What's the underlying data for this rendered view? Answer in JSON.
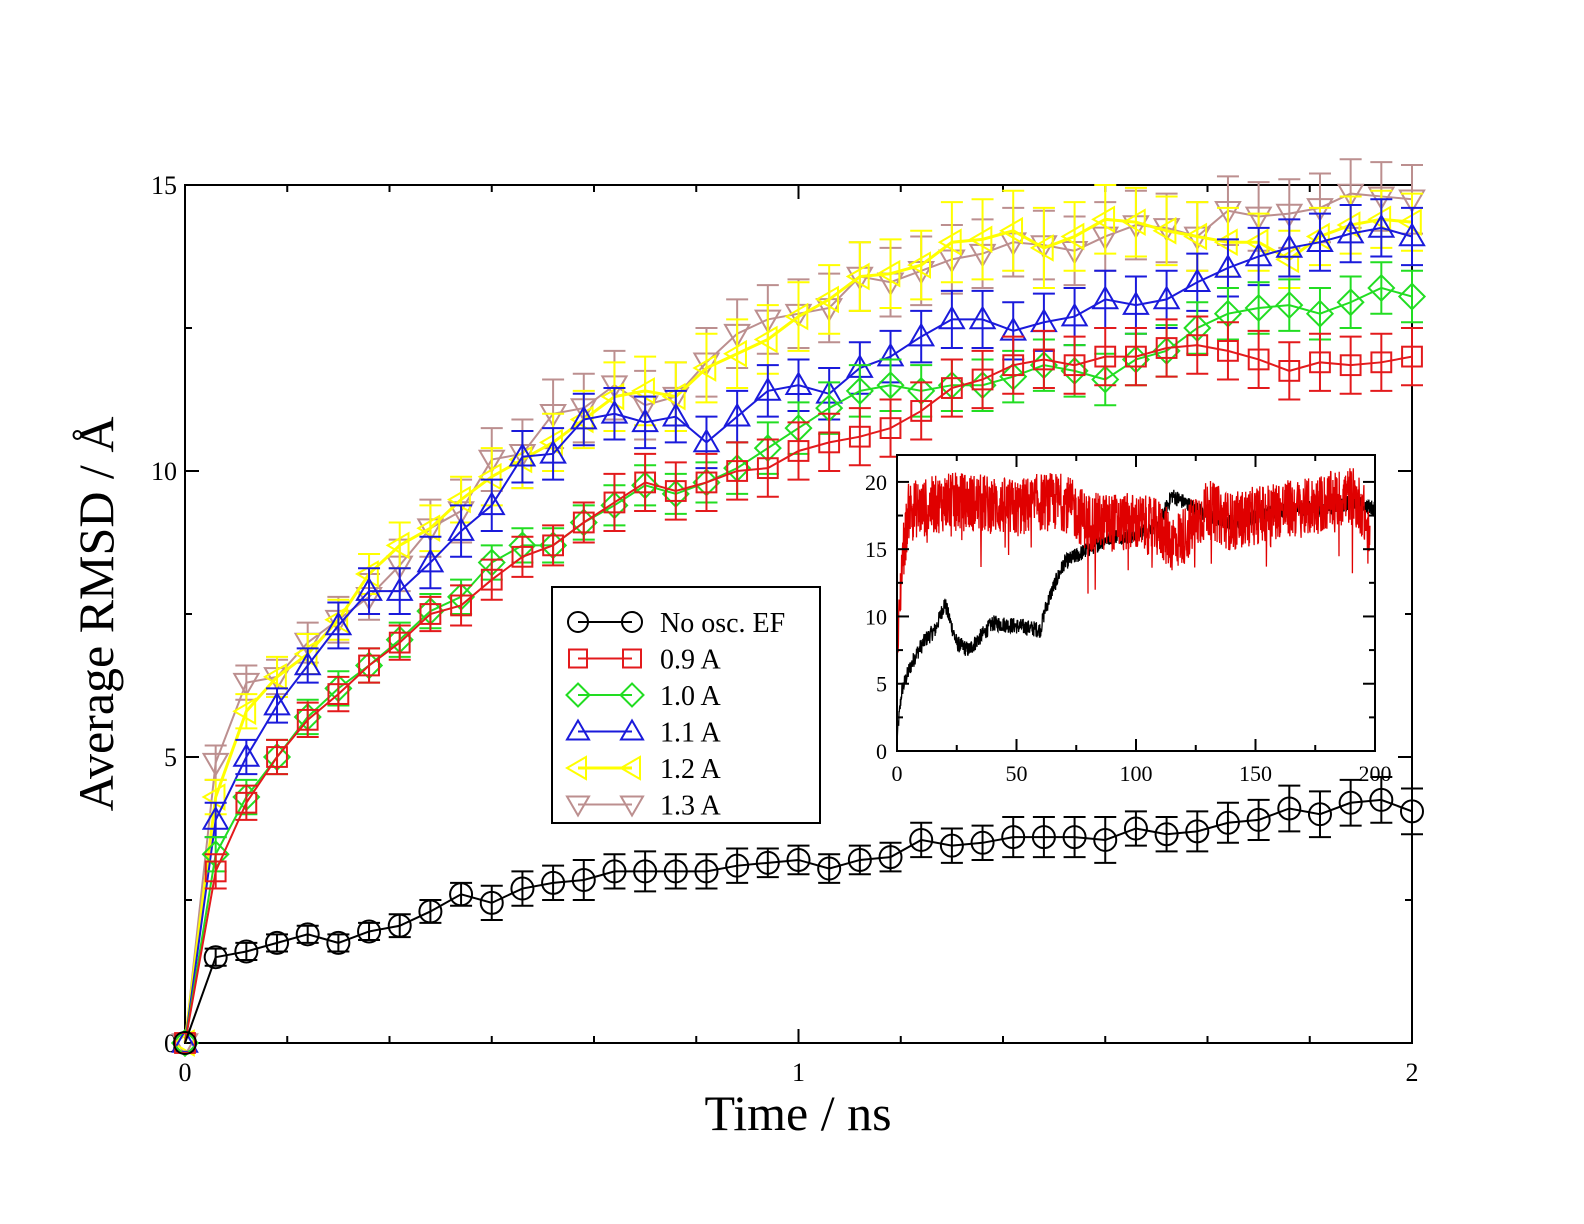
{
  "chart_data": [
    {
      "type": "line",
      "title": "",
      "xlabel": "Time / ns",
      "ylabel": "Average RMSD / Å",
      "xlim": [
        0,
        2
      ],
      "ylim": [
        0,
        15
      ],
      "x_ticks": [
        "0",
        "1",
        "2"
      ],
      "y_ticks": [
        "0",
        "5",
        "10",
        "15"
      ],
      "legend_position": "center",
      "series": [
        {
          "name": "No osc. EF",
          "color": "#000000",
          "marker": "circle",
          "x": [
            0,
            0.05,
            0.1,
            0.15,
            0.2,
            0.25,
            0.3,
            0.35,
            0.4,
            0.45,
            0.5,
            0.55,
            0.6,
            0.65,
            0.7,
            0.75,
            0.8,
            0.85,
            0.9,
            0.95,
            1.0,
            1.05,
            1.1,
            1.15,
            1.2,
            1.25,
            1.3,
            1.35,
            1.4,
            1.45,
            1.5,
            1.55,
            1.6,
            1.65,
            1.7,
            1.75,
            1.8,
            1.85,
            1.9,
            1.95,
            2.0
          ],
          "y": [
            0,
            1.5,
            1.6,
            1.75,
            1.9,
            1.75,
            1.95,
            2.05,
            2.3,
            2.6,
            2.45,
            2.7,
            2.8,
            2.85,
            3.0,
            3.0,
            3.0,
            3.0,
            3.1,
            3.15,
            3.2,
            3.05,
            3.2,
            3.25,
            3.55,
            3.45,
            3.5,
            3.6,
            3.6,
            3.6,
            3.55,
            3.75,
            3.65,
            3.7,
            3.85,
            3.9,
            4.1,
            4.0,
            4.2,
            4.25,
            4.05
          ],
          "err": [
            0,
            0.15,
            0.15,
            0.15,
            0.15,
            0.15,
            0.15,
            0.2,
            0.2,
            0.2,
            0.3,
            0.3,
            0.3,
            0.35,
            0.3,
            0.35,
            0.3,
            0.3,
            0.3,
            0.25,
            0.25,
            0.25,
            0.25,
            0.25,
            0.3,
            0.3,
            0.3,
            0.35,
            0.35,
            0.35,
            0.4,
            0.3,
            0.3,
            0.35,
            0.35,
            0.35,
            0.4,
            0.4,
            0.4,
            0.4,
            0.4
          ]
        },
        {
          "name": "0.9 A",
          "color": "#e31a1c",
          "marker": "square",
          "x": [
            0,
            0.05,
            0.1,
            0.15,
            0.2,
            0.25,
            0.3,
            0.35,
            0.4,
            0.45,
            0.5,
            0.55,
            0.6,
            0.65,
            0.7,
            0.75,
            0.8,
            0.85,
            0.9,
            0.95,
            1.0,
            1.05,
            1.1,
            1.15,
            1.2,
            1.25,
            1.3,
            1.35,
            1.4,
            1.45,
            1.5,
            1.55,
            1.6,
            1.65,
            1.7,
            1.75,
            1.8,
            1.85,
            1.9,
            1.95,
            2.0
          ],
          "y": [
            0,
            3.0,
            4.2,
            5.0,
            5.65,
            6.1,
            6.6,
            7.0,
            7.5,
            7.65,
            8.1,
            8.5,
            8.7,
            9.1,
            9.45,
            9.8,
            9.65,
            9.8,
            10.0,
            10.05,
            10.35,
            10.5,
            10.6,
            10.75,
            11.05,
            11.45,
            11.6,
            11.85,
            11.95,
            11.85,
            12.0,
            12.0,
            12.15,
            12.2,
            12.1,
            11.95,
            11.75,
            11.9,
            11.85,
            11.9,
            12.0
          ],
          "err": [
            0,
            0.3,
            0.3,
            0.3,
            0.3,
            0.3,
            0.3,
            0.3,
            0.3,
            0.35,
            0.35,
            0.35,
            0.35,
            0.35,
            0.5,
            0.5,
            0.5,
            0.5,
            0.5,
            0.5,
            0.5,
            0.5,
            0.5,
            0.5,
            0.5,
            0.5,
            0.5,
            0.5,
            0.5,
            0.5,
            0.5,
            0.5,
            0.5,
            0.5,
            0.5,
            0.5,
            0.5,
            0.5,
            0.5,
            0.5,
            0.5
          ]
        },
        {
          "name": "1.0 A",
          "color": "#22dd22",
          "marker": "diamond",
          "x": [
            0,
            0.05,
            0.1,
            0.15,
            0.2,
            0.25,
            0.3,
            0.35,
            0.4,
            0.45,
            0.5,
            0.55,
            0.6,
            0.65,
            0.7,
            0.75,
            0.8,
            0.85,
            0.9,
            0.95,
            1.0,
            1.05,
            1.1,
            1.15,
            1.2,
            1.25,
            1.3,
            1.35,
            1.4,
            1.45,
            1.5,
            1.55,
            1.6,
            1.65,
            1.7,
            1.75,
            1.8,
            1.85,
            1.9,
            1.95,
            2.0
          ],
          "y": [
            0,
            3.3,
            4.3,
            5.0,
            5.7,
            6.2,
            6.6,
            7.05,
            7.55,
            7.8,
            8.4,
            8.7,
            8.7,
            9.1,
            9.4,
            9.75,
            9.6,
            9.8,
            10.05,
            10.4,
            10.75,
            11.1,
            11.4,
            11.5,
            11.4,
            11.5,
            11.5,
            11.65,
            11.85,
            11.75,
            11.6,
            11.95,
            12.1,
            12.5,
            12.75,
            12.85,
            12.9,
            12.75,
            12.95,
            13.2,
            13.05
          ],
          "err": [
            0,
            0.3,
            0.3,
            0.3,
            0.3,
            0.3,
            0.3,
            0.3,
            0.3,
            0.3,
            0.3,
            0.3,
            0.3,
            0.3,
            0.35,
            0.35,
            0.35,
            0.35,
            0.45,
            0.45,
            0.45,
            0.45,
            0.45,
            0.45,
            0.45,
            0.45,
            0.45,
            0.45,
            0.45,
            0.45,
            0.45,
            0.45,
            0.45,
            0.45,
            0.45,
            0.45,
            0.45,
            0.45,
            0.45,
            0.45,
            0.45
          ]
        },
        {
          "name": "1.1 A",
          "color": "#1a1adb",
          "marker": "triangle-up",
          "x": [
            0,
            0.05,
            0.1,
            0.15,
            0.2,
            0.25,
            0.3,
            0.35,
            0.4,
            0.45,
            0.5,
            0.55,
            0.6,
            0.65,
            0.7,
            0.75,
            0.8,
            0.85,
            0.9,
            0.95,
            1.0,
            1.05,
            1.1,
            1.15,
            1.2,
            1.25,
            1.3,
            1.35,
            1.4,
            1.45,
            1.5,
            1.55,
            1.6,
            1.65,
            1.7,
            1.75,
            1.8,
            1.85,
            1.9,
            1.95,
            2.0
          ],
          "y": [
            0,
            3.9,
            5.0,
            5.9,
            6.6,
            7.3,
            7.9,
            7.9,
            8.4,
            8.95,
            9.4,
            10.25,
            10.3,
            10.9,
            11.0,
            10.85,
            10.95,
            10.5,
            10.95,
            11.4,
            11.5,
            11.35,
            11.8,
            12.0,
            12.35,
            12.65,
            12.65,
            12.45,
            12.6,
            12.7,
            13.0,
            12.9,
            13.0,
            13.3,
            13.55,
            13.75,
            13.9,
            14.0,
            14.15,
            14.25,
            14.1
          ],
          "err": [
            0,
            0.3,
            0.3,
            0.3,
            0.3,
            0.4,
            0.4,
            0.4,
            0.45,
            0.45,
            0.45,
            0.45,
            0.45,
            0.45,
            0.45,
            0.45,
            0.45,
            0.45,
            0.45,
            0.45,
            0.45,
            0.45,
            0.45,
            0.45,
            0.45,
            0.5,
            0.5,
            0.5,
            0.5,
            0.5,
            0.5,
            0.5,
            0.5,
            0.5,
            0.5,
            0.5,
            0.5,
            0.5,
            0.5,
            0.5,
            0.5
          ]
        },
        {
          "name": "1.2 A",
          "color": "#ffff00",
          "marker": "triangle-left",
          "x": [
            0,
            0.05,
            0.1,
            0.15,
            0.2,
            0.25,
            0.3,
            0.35,
            0.4,
            0.45,
            0.5,
            0.55,
            0.6,
            0.65,
            0.7,
            0.75,
            0.8,
            0.85,
            0.9,
            0.95,
            1.0,
            1.05,
            1.1,
            1.15,
            1.2,
            1.25,
            1.3,
            1.35,
            1.4,
            1.45,
            1.5,
            1.55,
            1.6,
            1.65,
            1.7,
            1.75,
            1.8,
            1.85,
            1.9,
            1.95,
            2.0
          ],
          "y": [
            0,
            4.3,
            5.8,
            6.4,
            6.8,
            7.4,
            8.2,
            8.7,
            9.0,
            9.5,
            9.9,
            10.2,
            10.5,
            10.9,
            11.3,
            11.4,
            11.3,
            11.8,
            12.05,
            12.3,
            12.7,
            13.0,
            13.4,
            13.45,
            13.6,
            14.0,
            14.05,
            14.2,
            13.9,
            14.1,
            14.4,
            14.35,
            14.2,
            14.1,
            14.0,
            14.0,
            13.7,
            14.1,
            14.3,
            14.4,
            14.35
          ],
          "err": [
            0,
            0.3,
            0.3,
            0.35,
            0.35,
            0.35,
            0.35,
            0.4,
            0.4,
            0.4,
            0.5,
            0.5,
            0.5,
            0.5,
            0.6,
            0.6,
            0.6,
            0.6,
            0.6,
            0.6,
            0.6,
            0.6,
            0.6,
            0.6,
            0.6,
            0.7,
            0.7,
            0.7,
            0.7,
            0.6,
            0.6,
            0.6,
            0.6,
            0.6,
            0.6,
            0.5,
            0.5,
            0.5,
            0.5,
            0.5,
            0.5
          ]
        },
        {
          "name": "1.3 A",
          "color": "#bc8f8f",
          "marker": "triangle-down",
          "x": [
            0,
            0.05,
            0.1,
            0.15,
            0.2,
            0.25,
            0.3,
            0.35,
            0.4,
            0.45,
            0.5,
            0.55,
            0.6,
            0.65,
            0.7,
            0.75,
            0.8,
            0.85,
            0.9,
            0.95,
            1.0,
            1.05,
            1.1,
            1.15,
            1.2,
            1.25,
            1.3,
            1.35,
            1.4,
            1.45,
            1.5,
            1.55,
            1.6,
            1.65,
            1.7,
            1.75,
            1.8,
            1.85,
            1.9,
            1.95,
            2.0
          ],
          "y": [
            0,
            4.9,
            6.3,
            6.4,
            7.0,
            7.4,
            7.8,
            8.35,
            9.0,
            9.3,
            10.2,
            10.3,
            11.0,
            11.1,
            11.5,
            11.15,
            11.3,
            11.9,
            12.4,
            12.65,
            12.75,
            12.85,
            13.4,
            13.3,
            13.5,
            13.7,
            13.8,
            14.0,
            13.95,
            13.85,
            14.1,
            14.3,
            14.25,
            14.1,
            14.55,
            14.45,
            14.5,
            14.6,
            14.85,
            14.8,
            14.75
          ],
          "err": [
            0,
            0.3,
            0.3,
            0.3,
            0.35,
            0.4,
            0.4,
            0.45,
            0.5,
            0.55,
            0.55,
            0.6,
            0.6,
            0.6,
            0.6,
            0.6,
            0.6,
            0.6,
            0.6,
            0.6,
            0.6,
            0.6,
            0.6,
            0.6,
            0.6,
            0.6,
            0.6,
            0.6,
            0.6,
            0.6,
            0.6,
            0.6,
            0.6,
            0.6,
            0.6,
            0.6,
            0.6,
            0.6,
            0.6,
            0.6,
            0.6
          ]
        }
      ]
    },
    {
      "type": "line",
      "title": "",
      "xlabel": "",
      "ylabel": "",
      "xlim": [
        0,
        200
      ],
      "ylim": [
        0,
        22
      ],
      "x_ticks": [
        "0",
        "50",
        "100",
        "150",
        "200"
      ],
      "y_ticks": [
        "0",
        "5",
        "10",
        "15",
        "20"
      ],
      "series": [
        {
          "name": "black",
          "color": "#000000",
          "x": [
            0,
            2,
            5,
            8,
            12,
            16,
            20,
            25,
            30,
            40,
            50,
            60,
            62,
            65,
            70,
            75,
            80,
            90,
            100,
            110,
            115,
            120,
            130,
            140,
            150,
            160,
            170,
            180,
            190,
            200
          ],
          "y": [
            1,
            4.5,
            6,
            7.2,
            8.3,
            9.0,
            11.0,
            8.0,
            7.5,
            9.5,
            9.3,
            9.0,
            10.5,
            12.0,
            14.0,
            14.5,
            15.0,
            16.0,
            16.0,
            17.0,
            19.0,
            18.5,
            17.5,
            17.0,
            17.5,
            17.8,
            18.0,
            18.0,
            18.5,
            18.0
          ],
          "noise": 0.6
        },
        {
          "name": "red",
          "color": "#e00000",
          "x": [
            0,
            2,
            5,
            10,
            20,
            30,
            40,
            50,
            60,
            70,
            80,
            90,
            100,
            110,
            115,
            120,
            130,
            140,
            150,
            160,
            170,
            180,
            190,
            195,
            198
          ],
          "y": [
            6,
            14,
            18,
            18,
            18.5,
            18.5,
            18.3,
            18,
            18.5,
            18.5,
            17,
            17,
            17,
            16.5,
            15.5,
            16,
            18,
            17,
            17.5,
            18,
            18,
            18.5,
            19,
            18,
            15
          ],
          "noise": 2.2
        }
      ]
    }
  ]
}
